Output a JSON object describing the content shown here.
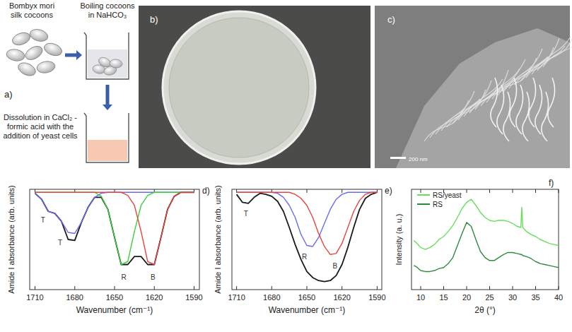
{
  "panels": {
    "a": {
      "letter": "a)",
      "steps": [
        "Bombyx mori silk cocoons",
        "Boiling cocoons in NaHCO₃",
        "Dissolution in CaCl₂ - formic acid with the addition of yeast cells"
      ]
    },
    "b": {
      "letter": "b)"
    },
    "c": {
      "letter": "c)",
      "scale_bar": "200 nm"
    }
  },
  "chart_data": [
    {
      "type": "line",
      "title": "d)",
      "x_label": "Wavenumber (cm⁻¹)",
      "y_label": "Amide I absorbance (arb. units)",
      "x": [
        1710,
        1705,
        1700,
        1695,
        1690,
        1685,
        1680,
        1675,
        1670,
        1665,
        1660,
        1655,
        1650,
        1645,
        1640,
        1635,
        1630,
        1625,
        1620,
        1615,
        1610,
        1605,
        1600,
        1595,
        1590
      ],
      "series": [
        {
          "color": "#1a1a1a",
          "values": [
            0.96,
            0.9,
            0.78,
            0.76,
            0.68,
            0.5,
            0.49,
            0.67,
            0.82,
            0.92,
            0.92,
            0.8,
            0.52,
            0.25,
            0.25,
            0.33,
            0.33,
            0.25,
            0.25,
            0.52,
            0.8,
            0.93,
            0.97,
            0.97,
            0.97
          ]
        },
        {
          "color": "#6b6bf0",
          "values": [
            0.96,
            0.9,
            0.78,
            0.76,
            0.68,
            0.57,
            0.56,
            0.67,
            0.82,
            0.92,
            0.96,
            0.97,
            0.97,
            0.97,
            0.97,
            0.97,
            0.97,
            0.97,
            0.97,
            0.97,
            0.97,
            0.97,
            0.97,
            0.97,
            0.97
          ]
        },
        {
          "color": "#3ccf3c",
          "values": [
            0.97,
            0.97,
            0.97,
            0.97,
            0.97,
            0.97,
            0.97,
            0.97,
            0.97,
            0.97,
            0.93,
            0.8,
            0.52,
            0.25,
            0.28,
            0.58,
            0.84,
            0.94,
            0.97,
            0.97,
            0.97,
            0.97,
            0.97,
            0.97,
            0.97
          ]
        },
        {
          "color": "#e8453c",
          "values": [
            0.97,
            0.97,
            0.97,
            0.97,
            0.97,
            0.97,
            0.97,
            0.97,
            0.97,
            0.97,
            0.97,
            0.97,
            0.97,
            0.97,
            0.94,
            0.84,
            0.58,
            0.28,
            0.25,
            0.52,
            0.8,
            0.93,
            0.97,
            0.97,
            0.97
          ]
        }
      ],
      "annotations": [
        {
          "text": "T",
          "x": 1704,
          "y": 0.7
        },
        {
          "text": "T",
          "x": 1691,
          "y": 0.47
        },
        {
          "text": "R",
          "x": 1643,
          "y": 0.13
        },
        {
          "text": "B",
          "x": 1621,
          "y": 0.13
        }
      ],
      "xlim": [
        1714,
        1586
      ],
      "ylim": [
        0,
        1
      ],
      "xticks": [
        1710,
        1680,
        1650,
        1620,
        1590
      ],
      "tick_labels": "x",
      "grid": false
    },
    {
      "type": "line",
      "title": "e)",
      "x_label": "Wavenumber (cm⁻¹)",
      "y_label": "Amide I absorbance (arb. units)",
      "x": [
        1710,
        1705,
        1700,
        1695,
        1690,
        1685,
        1680,
        1675,
        1670,
        1665,
        1660,
        1655,
        1650,
        1645,
        1640,
        1635,
        1630,
        1625,
        1620,
        1615,
        1610,
        1605,
        1600,
        1595,
        1590
      ],
      "series": [
        {
          "color": "#1a1a1a",
          "values": [
            0.95,
            0.87,
            0.86,
            0.92,
            0.96,
            0.95,
            0.93,
            0.88,
            0.78,
            0.62,
            0.45,
            0.3,
            0.18,
            0.12,
            0.09,
            0.08,
            0.09,
            0.14,
            0.25,
            0.42,
            0.62,
            0.8,
            0.91,
            0.95,
            0.97
          ]
        },
        {
          "color": "#6b6bf0",
          "values": [
            0.97,
            0.97,
            0.97,
            0.97,
            0.97,
            0.97,
            0.97,
            0.96,
            0.92,
            0.84,
            0.72,
            0.55,
            0.44,
            0.43,
            0.52,
            0.66,
            0.8,
            0.9,
            0.95,
            0.97,
            0.97,
            0.97,
            0.97,
            0.97,
            0.97
          ]
        },
        {
          "color": "#e8453c",
          "values": [
            0.97,
            0.97,
            0.97,
            0.97,
            0.97,
            0.97,
            0.97,
            0.97,
            0.97,
            0.97,
            0.95,
            0.91,
            0.84,
            0.72,
            0.56,
            0.43,
            0.35,
            0.36,
            0.46,
            0.62,
            0.78,
            0.89,
            0.95,
            0.97,
            0.97
          ]
        }
      ],
      "annotations": [
        {
          "text": "T",
          "x": 1702,
          "y": 0.76
        },
        {
          "text": "R",
          "x": 1652,
          "y": 0.33
        },
        {
          "text": "B",
          "x": 1626,
          "y": 0.24
        }
      ],
      "xlim": [
        1714,
        1586
      ],
      "ylim": [
        0,
        1
      ],
      "xticks": [
        1710,
        1680,
        1650,
        1620,
        1590
      ],
      "tick_labels": "x",
      "grid": false
    },
    {
      "type": "line",
      "title": "f)",
      "x_label": "2θ (°)",
      "y_label": "Intensity (a. u.)",
      "x": [
        8.5,
        9,
        10,
        11,
        12,
        13,
        14,
        15,
        16,
        17,
        18,
        19,
        20,
        21,
        22,
        23,
        24,
        25,
        26,
        27,
        28,
        29,
        30,
        31,
        31.8,
        32,
        32.2,
        33,
        34,
        35,
        36,
        37,
        38,
        39,
        40
      ],
      "series": [
        {
          "name": "RS/yeast",
          "color": "#66e05a",
          "values": [
            0.49,
            0.47,
            0.42,
            0.4,
            0.42,
            0.45,
            0.5,
            0.53,
            0.58,
            0.64,
            0.72,
            0.81,
            0.87,
            0.9,
            0.84,
            0.77,
            0.72,
            0.69,
            0.68,
            0.69,
            0.69,
            0.68,
            0.66,
            0.63,
            0.62,
            0.82,
            0.62,
            0.58,
            0.55,
            0.53,
            0.5,
            0.48,
            0.46,
            0.45,
            0.44
          ]
        },
        {
          "name": "RS",
          "color": "#2e8b3e",
          "values": [
            0.24,
            0.23,
            0.19,
            0.18,
            0.18,
            0.19,
            0.21,
            0.22,
            0.26,
            0.32,
            0.44,
            0.56,
            0.67,
            0.63,
            0.5,
            0.38,
            0.32,
            0.29,
            0.29,
            0.32,
            0.35,
            0.37,
            0.37,
            0.36,
            0.35,
            0.35,
            0.34,
            0.33,
            0.31,
            0.28,
            0.26,
            0.25,
            0.24,
            0.23,
            0.22
          ]
        }
      ],
      "xlim": [
        8,
        40
      ],
      "ylim": [
        0,
        1
      ],
      "xticks": [
        10,
        15,
        20,
        25,
        30,
        35,
        40
      ],
      "tick_labels": "x",
      "grid": false,
      "legend": "upper left"
    }
  ]
}
